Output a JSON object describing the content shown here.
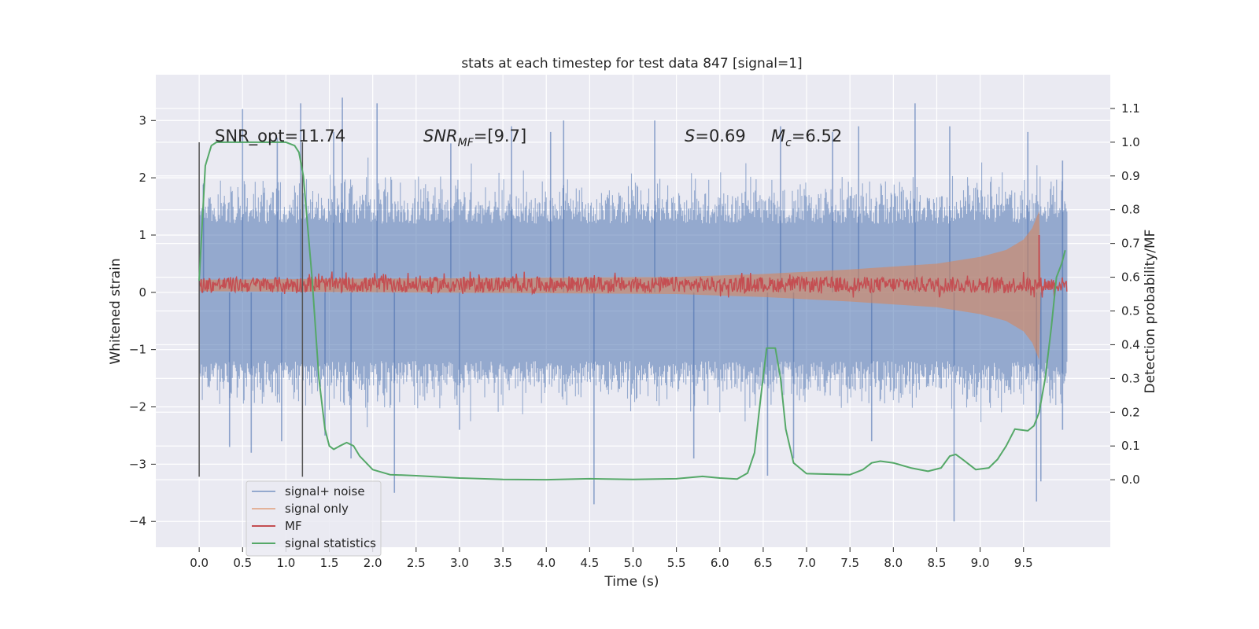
{
  "chart_data": {
    "type": "line",
    "title": "stats at each timestep for test data 847 [signal=1]",
    "xlabel": "Time (s)",
    "ylabel": "Whitened strain",
    "ylabel_right": "Detection probability/MF",
    "xlim": [
      -0.5,
      10.5
    ],
    "ylim": [
      -4.45,
      3.8
    ],
    "ylim_right": [
      -0.2,
      1.2
    ],
    "xticks": [
      "0.0",
      "0.5",
      "1.0",
      "1.5",
      "2.0",
      "2.5",
      "3.0",
      "3.5",
      "4.0",
      "4.5",
      "5.0",
      "5.5",
      "6.0",
      "6.5",
      "7.0",
      "7.5",
      "8.0",
      "8.5",
      "9.0",
      "9.5"
    ],
    "yticks": [
      "3",
      "2",
      "1",
      "0",
      "−1",
      "−2",
      "−3",
      "−4"
    ],
    "yticks_right": [
      "1.1",
      "1.0",
      "0.9",
      "0.8",
      "0.7",
      "0.6",
      "0.5",
      "0.4",
      "0.3",
      "0.2",
      "0.1",
      "0.0"
    ],
    "grid": true,
    "legend_position": "lower-left",
    "colors": {
      "background": "#EAEAF2",
      "grid": "#FFFFFF",
      "signal_noise": "#4C72B0",
      "signal_only": "#DD8452",
      "mf": "#C44E52",
      "statistics": "#55A868",
      "marker_lines": "#555555"
    },
    "annotations": {
      "snr_opt": "SNR_opt=11.74",
      "snr_mf": "SNR",
      "snr_mf_sub": "MF",
      "snr_mf_value": "=[9.7]",
      "s_label": "S",
      "s_value": "=0.69",
      "mc_label": "M",
      "mc_sub": "c",
      "mc_value": "=6.52"
    },
    "vertical_markers_x": [
      0.0,
      1.19
    ],
    "series": [
      {
        "name": "signal+ noise",
        "description_type": "noise band",
        "axis": "left",
        "x_range": [
          0.0,
          10.0
        ],
        "typical_envelope": [
          -1.5,
          1.5
        ],
        "peaks": [
          {
            "x": 0.05,
            "y": 1.9
          },
          {
            "x": 0.5,
            "y": 3.2
          },
          {
            "x": 0.9,
            "y": 2.7
          },
          {
            "x": 1.17,
            "y": 3.3
          },
          {
            "x": 1.55,
            "y": 2.8
          },
          {
            "x": 1.65,
            "y": 3.4
          },
          {
            "x": 2.05,
            "y": 3.3
          },
          {
            "x": 2.9,
            "y": 2.6
          },
          {
            "x": 3.6,
            "y": 2.9
          },
          {
            "x": 4.05,
            "y": 2.8
          },
          {
            "x": 4.2,
            "y": 3.0
          },
          {
            "x": 5.25,
            "y": 3.0
          },
          {
            "x": 6.7,
            "y": 2.9
          },
          {
            "x": 7.3,
            "y": 2.8
          },
          {
            "x": 7.6,
            "y": 2.9
          },
          {
            "x": 8.25,
            "y": 3.3
          },
          {
            "x": 8.65,
            "y": 2.9
          },
          {
            "x": 9.55,
            "y": 2.8
          },
          {
            "x": 9.95,
            "y": 2.3
          }
        ],
        "troughs": [
          {
            "x": 0.35,
            "y": -2.7
          },
          {
            "x": 0.6,
            "y": -2.8
          },
          {
            "x": 0.95,
            "y": -2.6
          },
          {
            "x": 1.45,
            "y": -2.5
          },
          {
            "x": 1.75,
            "y": -2.9
          },
          {
            "x": 2.25,
            "y": -3.5
          },
          {
            "x": 3.0,
            "y": -2.4
          },
          {
            "x": 4.55,
            "y": -3.7
          },
          {
            "x": 5.7,
            "y": -2.9
          },
          {
            "x": 6.55,
            "y": -3.2
          },
          {
            "x": 6.85,
            "y": -2.9
          },
          {
            "x": 7.75,
            "y": -2.6
          },
          {
            "x": 8.7,
            "y": -4.0
          },
          {
            "x": 9.65,
            "y": -3.65
          },
          {
            "x": 9.7,
            "y": -3.3
          },
          {
            "x": 9.95,
            "y": -2.4
          }
        ]
      },
      {
        "name": "signal only",
        "description_type": "chirp envelope",
        "axis": "left",
        "x": [
          0.0,
          5.5,
          6.5,
          7.5,
          8.5,
          9.0,
          9.3,
          9.5,
          9.6,
          9.68,
          9.7
        ],
        "amplitude": [
          0.1,
          0.15,
          0.2,
          0.28,
          0.38,
          0.5,
          0.62,
          0.8,
          1.0,
          1.3,
          0.0
        ]
      },
      {
        "name": "MF",
        "description_type": "matched filter",
        "axis": "left",
        "x_range": [
          0.0,
          10.0
        ],
        "typical_band": [
          0.0,
          0.27
        ],
        "peak": {
          "x": 9.68,
          "y": 1.0
        }
      },
      {
        "name": "signal statistics",
        "axis": "right",
        "x": [
          0.0,
          0.07,
          0.14,
          0.2,
          0.3,
          0.5,
          0.7,
          0.9,
          1.0,
          1.1,
          1.15,
          1.2,
          1.3,
          1.38,
          1.45,
          1.5,
          1.55,
          1.62,
          1.7,
          1.78,
          1.85,
          2.0,
          2.2,
          2.5,
          3.0,
          3.5,
          4.0,
          4.5,
          5.0,
          5.5,
          5.8,
          6.0,
          6.2,
          6.32,
          6.4,
          6.47,
          6.54,
          6.58,
          6.64,
          6.7,
          6.76,
          6.85,
          7.0,
          7.5,
          7.65,
          7.75,
          7.85,
          8.0,
          8.2,
          8.4,
          8.55,
          8.65,
          8.72,
          8.8,
          8.95,
          9.1,
          9.2,
          9.3,
          9.4,
          9.55,
          9.62,
          9.68,
          9.75,
          9.82,
          9.88,
          9.94,
          9.98
        ],
        "y": [
          0.59,
          0.93,
          0.99,
          1.0,
          1.0,
          1.0,
          1.0,
          1.0,
          1.0,
          0.99,
          0.97,
          0.9,
          0.6,
          0.3,
          0.15,
          0.1,
          0.09,
          0.1,
          0.11,
          0.1,
          0.07,
          0.03,
          0.015,
          0.012,
          0.005,
          0.001,
          0.0,
          0.003,
          0.001,
          0.003,
          0.01,
          0.005,
          0.002,
          0.02,
          0.08,
          0.24,
          0.39,
          0.39,
          0.39,
          0.3,
          0.15,
          0.05,
          0.018,
          0.015,
          0.03,
          0.05,
          0.055,
          0.05,
          0.035,
          0.025,
          0.035,
          0.07,
          0.075,
          0.06,
          0.03,
          0.035,
          0.06,
          0.1,
          0.15,
          0.145,
          0.16,
          0.2,
          0.3,
          0.45,
          0.6,
          0.64,
          0.68
        ]
      }
    ]
  }
}
